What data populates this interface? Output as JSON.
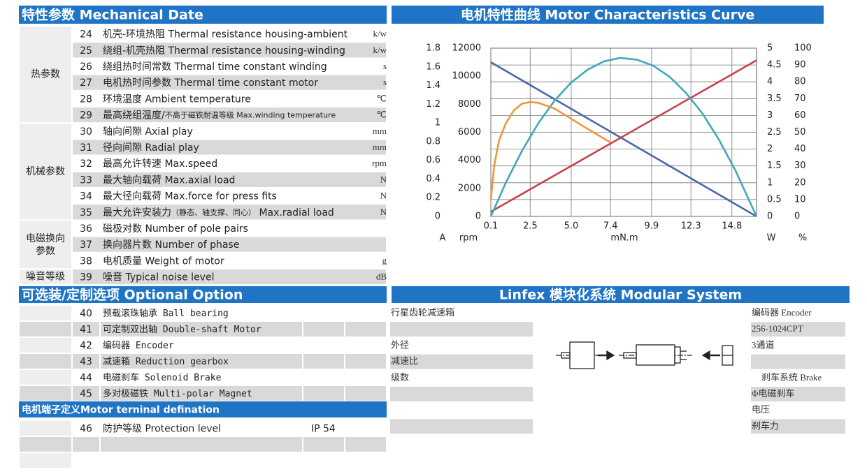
{
  "mechanical": {
    "title": "特性参数 Mechanical Date",
    "groups": [
      {
        "label": "热参数",
        "rows": [
          {
            "no": 24,
            "text": "机壳-环境热阻 Thermal resistance housing-ambient",
            "unit": "k/w"
          },
          {
            "no": 25,
            "text": "绕组-机壳热阻 Thermal resistance housing-winding",
            "unit": "k/w"
          },
          {
            "no": 26,
            "text": "绕组热时间常数 Thermal time constant winding",
            "unit": "s"
          },
          {
            "no": 27,
            "text": "电机热时间参数 Thermal time constant motor",
            "unit": "s"
          },
          {
            "no": 28,
            "text": "环境温度 Ambient temperature",
            "unit": "℃"
          },
          {
            "no": 29,
            "text": "最高绕组温度/",
            "small": "不高于磁铁耐温等级 Max.winding temperature",
            "unit": "℃"
          }
        ]
      },
      {
        "label": "机械参数",
        "rows": [
          {
            "no": 30,
            "text": "轴向间隙 Axial play",
            "unit": "mm"
          },
          {
            "no": 31,
            "text": "径向间隙 Radial play",
            "unit": "mm"
          },
          {
            "no": 32,
            "text": "最高允许转速 Max.speed",
            "unit": "rpm"
          },
          {
            "no": 33,
            "text": "最大轴向载荷 Max.axial load",
            "unit": "N"
          },
          {
            "no": 34,
            "text": "最大径向载荷 Max.force for press fits",
            "unit": "N"
          },
          {
            "no": 35,
            "text": "最大允许安装力",
            "small": "（静态、轴支撑、同心）",
            "tail": " Max.radial load",
            "unit": "N"
          }
        ]
      },
      {
        "label": "电磁换向参数",
        "rows": [
          {
            "no": 36,
            "text": "磁极对数 Number of pole pairs"
          },
          {
            "no": 37,
            "text": "换向器片数  Number of phase"
          },
          {
            "no": 38,
            "text": "电机质量 Weight of motor",
            "unit": "g"
          }
        ]
      },
      {
        "label": "噪音等级",
        "rows": [
          {
            "no": 39,
            "text": "噪音 Typical noise level",
            "unit": "dB"
          }
        ]
      }
    ]
  },
  "chart_data": {
    "type": "line",
    "title": "电机特性曲线 Motor Characteristics Curve",
    "x_label": "mN.m",
    "xlim": [
      0.1,
      16.3
    ],
    "xticks": [
      0.1,
      2.5,
      {
        "value": 5,
        "label": "5.0"
      },
      7.4,
      9.9,
      12.3,
      14.8
    ],
    "grid": true,
    "grid_axis": 2,
    "y_axes": [
      {
        "label": "A",
        "lim": [
          0,
          1.8
        ],
        "ticks": [
          0,
          0.2,
          0.4,
          0.6,
          0.8,
          1,
          1.2,
          1.4,
          1.6,
          1.8
        ]
      },
      {
        "label": "rpm",
        "lim": [
          0,
          12000
        ],
        "ticks": [
          0,
          2000,
          4000,
          6000,
          8000,
          10000,
          12000
        ]
      },
      {
        "label": "W",
        "lim": [
          0,
          5
        ],
        "ticks": [
          0,
          0.5,
          1,
          1.5,
          2,
          2.5,
          3,
          3.5,
          4,
          4.5,
          5
        ]
      },
      {
        "label": "%",
        "lim": [
          0,
          100
        ],
        "ticks": [
          0,
          10,
          20,
          30,
          40,
          50,
          60,
          70,
          80,
          90,
          100
        ]
      }
    ],
    "series": [
      {
        "axis": 1,
        "color": "#4a68a8",
        "x": [
          0.1,
          16.3
        ],
        "values": [
          11000,
          0
        ]
      },
      {
        "axis": 0,
        "color": "#c4434d",
        "x": [
          0.1,
          16.3
        ],
        "values": [
          0.05,
          1.67
        ]
      },
      {
        "axis": 2,
        "color": "#3fa9b9",
        "x": [
          0.1,
          1,
          2,
          3,
          4,
          5,
          6,
          7,
          8,
          9,
          10,
          11,
          12,
          13,
          14,
          15,
          16.3
        ],
        "values": [
          0,
          0.99,
          1.95,
          2.77,
          3.45,
          3.98,
          4.36,
          4.61,
          4.71,
          4.66,
          4.48,
          4.15,
          3.67,
          3.06,
          2.29,
          1.38,
          0
        ]
      },
      {
        "axis": 3,
        "color": "#f0963a",
        "x": [
          0.1,
          0.3,
          0.6,
          1,
          1.5,
          2,
          2.5,
          3,
          4,
          5,
          6,
          7.4
        ],
        "values": [
          10,
          30,
          45,
          55,
          63,
          67,
          68,
          67.5,
          64,
          58,
          52,
          44
        ]
      }
    ]
  },
  "optional": {
    "title": "可选装/定制选项 Optional Option",
    "rows": [
      {
        "no": 40,
        "text": "预载滚珠轴承 Ball bearing"
      },
      {
        "no": 41,
        "text": "可定制双出轴 Double-shaft Motor"
      },
      {
        "no": 42,
        "text": "编码器 Encoder"
      },
      {
        "no": 43,
        "text": "减速箱 Reduction gearbox"
      },
      {
        "no": 44,
        "text": "电磁刹车 Solenoid Brake"
      },
      {
        "no": 45,
        "text": "多对极磁铁 Multi-polar Magnet"
      }
    ]
  },
  "terminal": {
    "title": "电机端子定义Motor terninal defination",
    "rows": [
      {
        "no": 46,
        "text": "防护等级 Protection level",
        "value": "IP 54"
      }
    ]
  },
  "modular": {
    "title": "Linfex 模块化系统 Modular System",
    "gearbox": [
      "行星齿轮减速箱",
      "外径",
      "减速比",
      "级数"
    ],
    "encoder": [
      "编码器 Encoder",
      "256-1024CPT",
      "3通道"
    ],
    "brake": [
      "刹车系统 Brake",
      "Φ电磁刹车",
      "电压",
      "刹车力"
    ]
  }
}
